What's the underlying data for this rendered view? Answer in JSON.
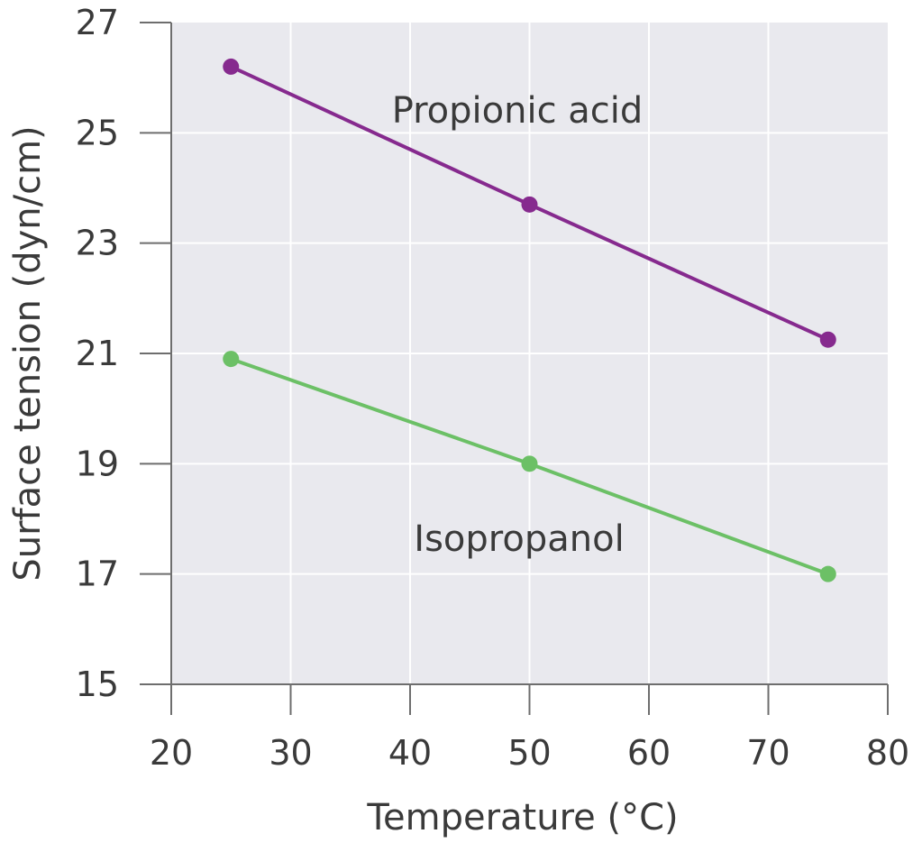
{
  "chart_data": {
    "type": "line",
    "title": "",
    "xlabel": "Temperature (°C)",
    "ylabel": "Surface tension (dyn/cm)",
    "xlim": [
      20,
      80
    ],
    "ylim": [
      15,
      27
    ],
    "xticks": [
      20,
      30,
      40,
      50,
      60,
      70,
      80
    ],
    "yticks": [
      15,
      17,
      19,
      21,
      23,
      25,
      27
    ],
    "grid": true,
    "background_color": "#e9e9ee",
    "series": [
      {
        "name": "Propionic acid",
        "color": "#862a8e",
        "x": [
          25,
          50,
          75
        ],
        "y": [
          26.2,
          23.7,
          21.25
        ]
      },
      {
        "name": "Isopropanol",
        "color": "#6cc066",
        "x": [
          25,
          50,
          75
        ],
        "y": [
          20.9,
          19.0,
          17.0
        ]
      }
    ]
  }
}
